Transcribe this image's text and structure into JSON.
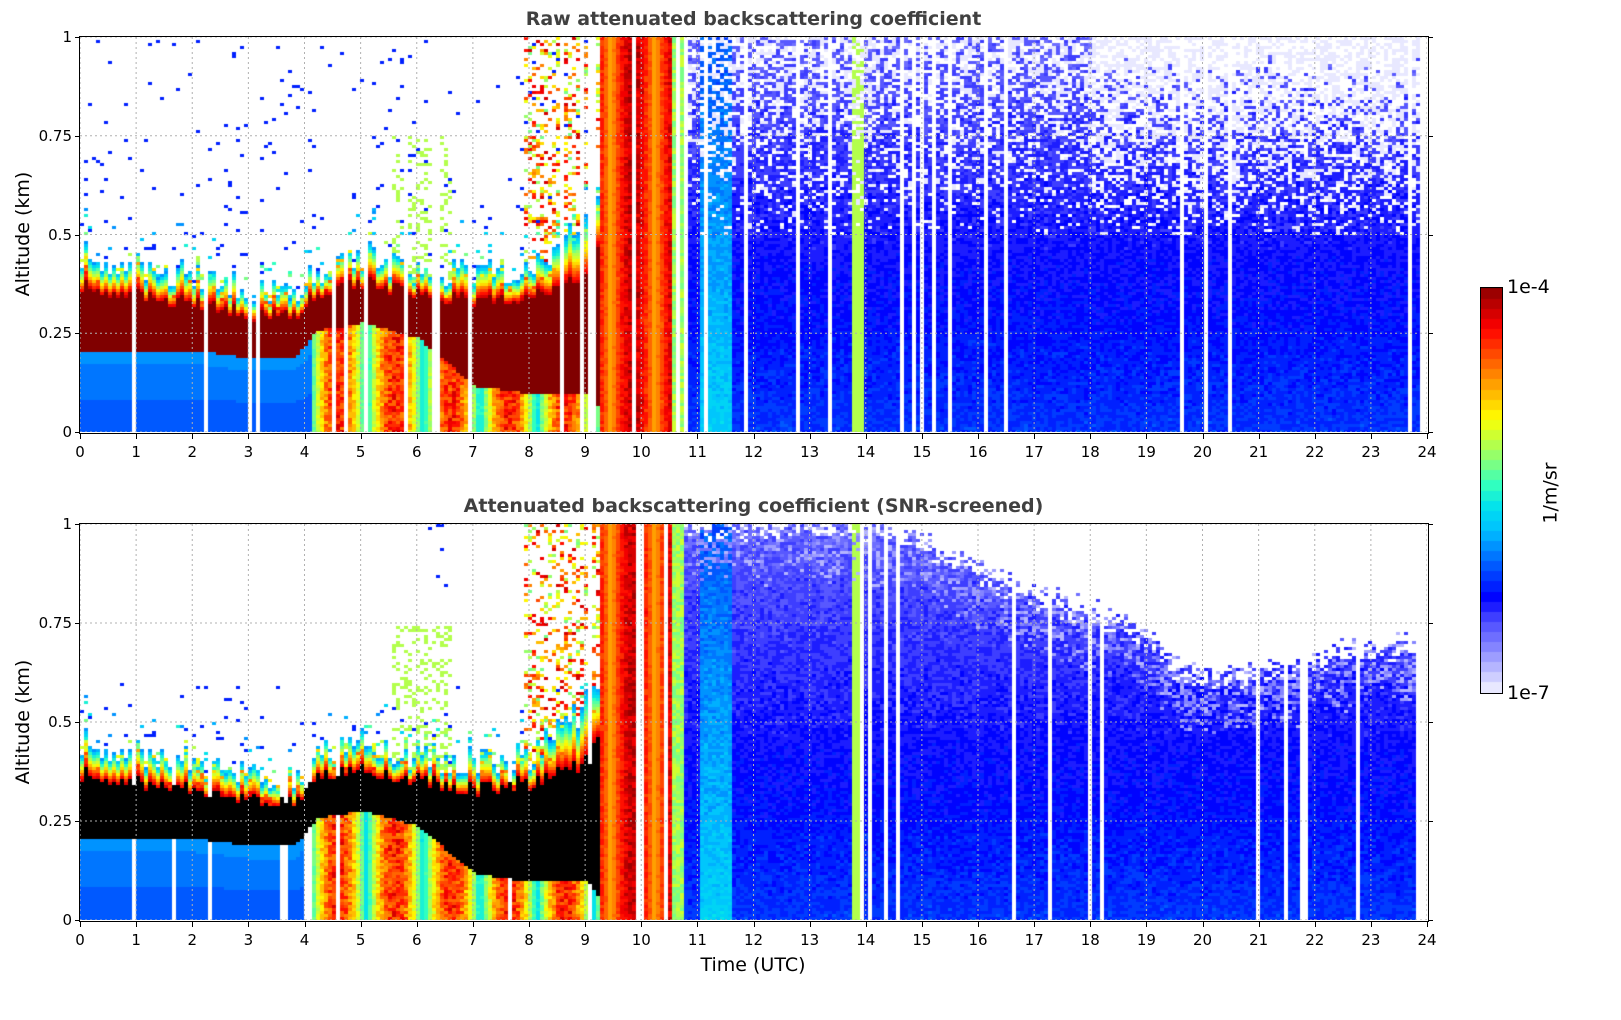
{
  "chart_data": [
    {
      "type": "heatmap",
      "title": "Raw attenuated backscattering coefficient",
      "xlabel": "",
      "ylabel": "Altitude (km)",
      "xlim": [
        0,
        24
      ],
      "ylim": [
        0,
        1
      ],
      "xticks": [
        "0",
        "1",
        "2",
        "3",
        "4",
        "5",
        "6",
        "7",
        "8",
        "9",
        "10",
        "11",
        "12",
        "13",
        "14",
        "15",
        "16",
        "17",
        "18",
        "19",
        "20",
        "21",
        "22",
        "23",
        "24"
      ],
      "yticks": [
        "0",
        "0.25",
        "0.5",
        "0.75",
        "1"
      ],
      "ytick_values": [
        0,
        0.25,
        0.5,
        0.75,
        1
      ],
      "grid": true,
      "screened": false,
      "data_end_hour": 23.85,
      "boundary_layer": {
        "hours": [
          0,
          1,
          2,
          3,
          3.8,
          4.2,
          5,
          6,
          7,
          8,
          9,
          9.3
        ],
        "top_km": [
          0.45,
          0.42,
          0.4,
          0.36,
          0.36,
          0.42,
          0.45,
          0.42,
          0.4,
          0.42,
          0.55,
          0.6
        ],
        "core_top_km": [
          0.37,
          0.35,
          0.33,
          0.3,
          0.3,
          0.36,
          0.38,
          0.36,
          0.33,
          0.35,
          0.4,
          0.5
        ],
        "core_bot_km": [
          0.21,
          0.21,
          0.21,
          0.19,
          0.19,
          0.26,
          0.28,
          0.24,
          0.12,
          0.1,
          0.1,
          0.05
        ]
      },
      "low_cloud_hours": [
        9.2,
        10.7
      ],
      "clear_sky_after_hour": 10.7,
      "noise_region": {
        "from_hour": 10.7,
        "above_km": 0.5
      }
    },
    {
      "type": "heatmap",
      "title": "Attenuated backscattering coefficient (SNR-screened)",
      "xlabel": "Time (UTC)",
      "ylabel": "Altitude (km)",
      "xlim": [
        0,
        24
      ],
      "ylim": [
        0,
        1
      ],
      "xticks": [
        "0",
        "1",
        "2",
        "3",
        "4",
        "5",
        "6",
        "7",
        "8",
        "9",
        "10",
        "11",
        "12",
        "13",
        "14",
        "15",
        "16",
        "17",
        "18",
        "19",
        "20",
        "21",
        "22",
        "23",
        "24"
      ],
      "yticks": [
        "0",
        "0.25",
        "0.5",
        "0.75",
        "1"
      ],
      "ytick_values": [
        0,
        0.25,
        0.5,
        0.75,
        1
      ],
      "grid": true,
      "screened": true,
      "data_end_hour": 23.85,
      "screen_top_km": {
        "hours": [
          10.7,
          12,
          14,
          15,
          16,
          17,
          18,
          19,
          19.6,
          20.5,
          21.5,
          22.5,
          23.85
        ],
        "km": [
          1.0,
          1.0,
          1.0,
          0.95,
          0.88,
          0.82,
          0.78,
          0.72,
          0.62,
          0.62,
          0.64,
          0.68,
          0.7
        ]
      }
    }
  ],
  "colorbar": {
    "label": "1/m/sr",
    "max_label": "1e-4",
    "min_label": "1e-7",
    "scale": "log",
    "range": [
      1e-07,
      0.0001
    ],
    "colormap_stops": [
      "#e8e8ff",
      "#b0b0ff",
      "#7a7aff",
      "#4a4aff",
      "#0000ff",
      "#0040ff",
      "#0080ff",
      "#00c0ff",
      "#00e0f0",
      "#30ffc0",
      "#80ff80",
      "#c0ff40",
      "#ffff00",
      "#ffc000",
      "#ff8000",
      "#ff4000",
      "#ff0000",
      "#c00000",
      "#800000"
    ],
    "saturated_color": "#000000"
  },
  "colors": {
    "title": "#404040",
    "grid": "#b0b0b0",
    "gap_line": "#ffffff"
  }
}
